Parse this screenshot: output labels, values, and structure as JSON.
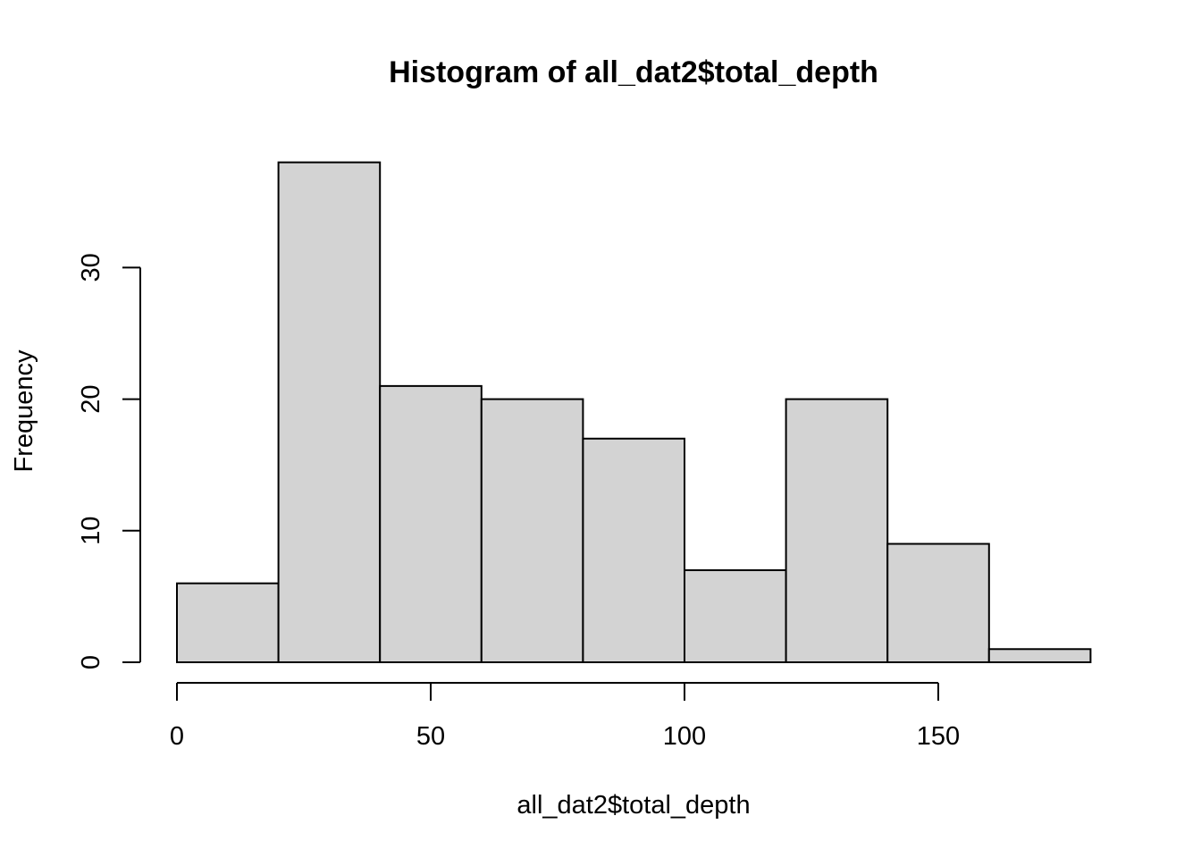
{
  "chart_data": {
    "type": "bar",
    "title": "Histogram of all_dat2$total_depth",
    "xlabel": "all_dat2$total_depth",
    "ylabel": "Frequency",
    "bins": [
      {
        "start": 0,
        "end": 20,
        "count": 6
      },
      {
        "start": 20,
        "end": 40,
        "count": 38
      },
      {
        "start": 40,
        "end": 60,
        "count": 21
      },
      {
        "start": 60,
        "end": 80,
        "count": 20
      },
      {
        "start": 80,
        "end": 100,
        "count": 17
      },
      {
        "start": 100,
        "end": 120,
        "count": 7
      },
      {
        "start": 120,
        "end": 140,
        "count": 20
      },
      {
        "start": 140,
        "end": 160,
        "count": 9
      },
      {
        "start": 160,
        "end": 180,
        "count": 1
      }
    ],
    "xlim": [
      0,
      180
    ],
    "ylim": [
      0,
      38
    ],
    "x_ticks": [
      0,
      50,
      100,
      150
    ],
    "y_ticks": [
      0,
      10,
      20,
      30
    ],
    "bar_color": "#d3d3d3",
    "grid": false
  }
}
